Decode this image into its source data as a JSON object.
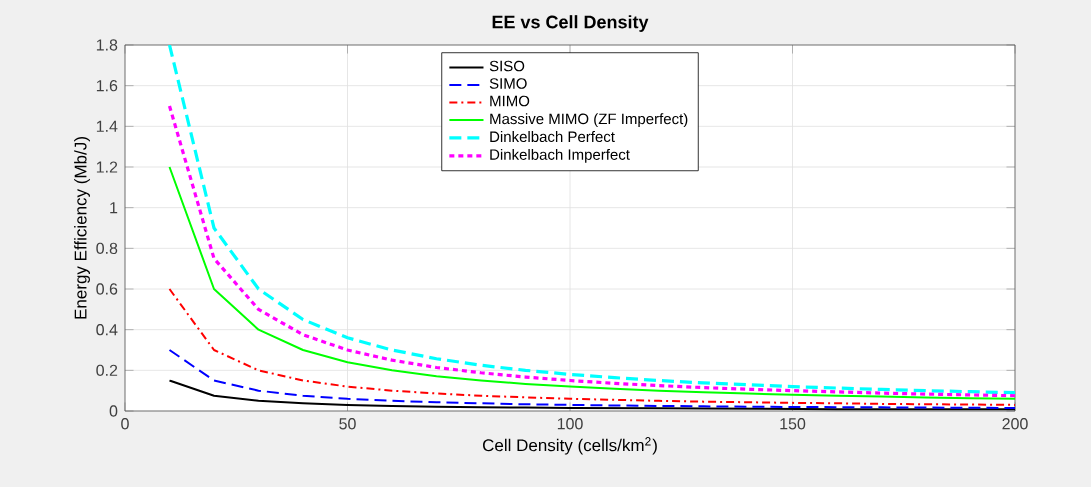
{
  "chart_data": {
    "type": "line",
    "title": "**EE vs Cell Density**",
    "xlabel": "Cell Density (cells/km$^{2}$)",
    "ylabel": "Energy Efficiency (Mb/J)",
    "x": [
      10,
      20,
      30,
      40,
      50,
      60,
      70,
      80,
      90,
      100,
      110,
      120,
      130,
      140,
      150,
      160,
      170,
      180,
      190,
      200
    ],
    "series": [
      {
        "name": "SISO",
        "color": "#000000",
        "line_style": "solid",
        "values": [
          0.15,
          0.075,
          0.05,
          0.038,
          0.03,
          0.025,
          0.021,
          0.019,
          0.017,
          0.015,
          0.014,
          0.013,
          0.012,
          0.011,
          0.01,
          0.009,
          0.009,
          0.008,
          0.008,
          0.008
        ]
      },
      {
        "name": "SIMO",
        "color": "#0000ff",
        "line_style": "dashed",
        "values": [
          0.3,
          0.15,
          0.1,
          0.075,
          0.06,
          0.05,
          0.043,
          0.038,
          0.033,
          0.03,
          0.027,
          0.025,
          0.023,
          0.021,
          0.02,
          0.019,
          0.018,
          0.017,
          0.016,
          0.015
        ]
      },
      {
        "name": "MIMO",
        "color": "#ff0000",
        "line_style": "dashdot",
        "values": [
          0.6,
          0.3,
          0.2,
          0.15,
          0.12,
          0.1,
          0.086,
          0.075,
          0.067,
          0.06,
          0.055,
          0.05,
          0.046,
          0.043,
          0.04,
          0.038,
          0.035,
          0.033,
          0.032,
          0.03
        ]
      },
      {
        "name": "Massive MIMO (ZF Imperfect)",
        "color": "#00ff00",
        "line_style": "solid",
        "values": [
          1.2,
          0.6,
          0.4,
          0.3,
          0.24,
          0.2,
          0.171,
          0.15,
          0.133,
          0.12,
          0.109,
          0.1,
          0.092,
          0.086,
          0.08,
          0.075,
          0.071,
          0.067,
          0.063,
          0.06
        ]
      },
      {
        "name": "Dinkelbach Perfect",
        "color": "#00ffff",
        "line_style": "dashed",
        "values": [
          1.8,
          0.9,
          0.6,
          0.45,
          0.36,
          0.3,
          0.257,
          0.225,
          0.2,
          0.18,
          0.164,
          0.15,
          0.138,
          0.129,
          0.12,
          0.113,
          0.106,
          0.1,
          0.095,
          0.09
        ]
      },
      {
        "name": "Dinkelbach Imperfect",
        "color": "#ff00ff",
        "line_style": "dotted",
        "values": [
          1.5,
          0.75,
          0.5,
          0.375,
          0.3,
          0.25,
          0.214,
          0.188,
          0.167,
          0.15,
          0.136,
          0.125,
          0.115,
          0.107,
          0.1,
          0.094,
          0.088,
          0.083,
          0.079,
          0.075
        ]
      }
    ],
    "xlim": [
      0,
      200
    ],
    "ylim": [
      0,
      1.8
    ],
    "xticks": [
      0,
      50,
      100,
      150,
      200
    ],
    "yticks": [
      0,
      0.2,
      0.4,
      0.6,
      0.8,
      1,
      1.2,
      1.4,
      1.6,
      1.8
    ],
    "grid": true,
    "legend": "top",
    "marker": "none"
  }
}
